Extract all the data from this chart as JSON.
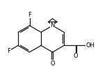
{
  "bg_color": "#ffffff",
  "bond_color": "#1a1a1a",
  "figsize": [
    1.41,
    1.05
  ],
  "dpi": 100,
  "xlim": [
    0,
    10
  ],
  "ylim": [
    0,
    7.5
  ],
  "bl": 1.4
}
